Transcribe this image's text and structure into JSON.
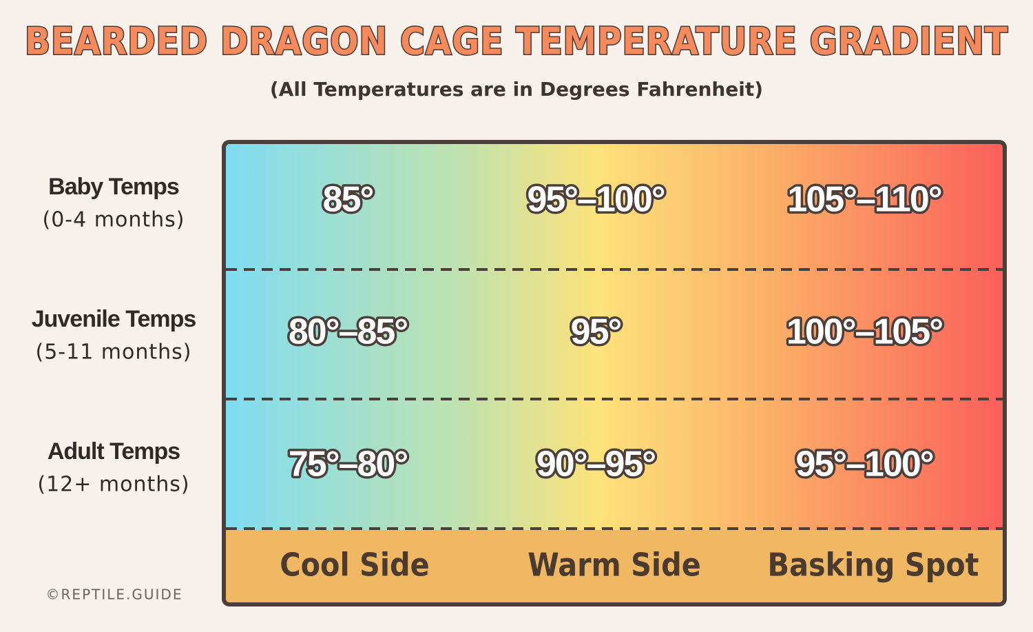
{
  "header": {
    "title": "BEARDED DRAGON CAGE TEMPERATURE GRADIENT",
    "subtitle": "(All Temperatures are in Degrees Fahrenheit)"
  },
  "table": {
    "rows": [
      {
        "label": "Baby Temps",
        "sublabel": "(0-4 months)",
        "cells": [
          "85°",
          "95°–100°",
          "105°–110°"
        ]
      },
      {
        "label": "Juvenile Temps",
        "sublabel": "(5-11 months)",
        "cells": [
          "80°–85°",
          "95°",
          "100°–105°"
        ]
      },
      {
        "label": "Adult Temps",
        "sublabel": "(12+ months)",
        "cells": [
          "75°–80°",
          "90°–95°",
          "95°–100°"
        ]
      }
    ],
    "columns": [
      "Cool Side",
      "Warm Side",
      "Basking Spot"
    ]
  },
  "credit": "©REPTILE.GUIDE"
}
